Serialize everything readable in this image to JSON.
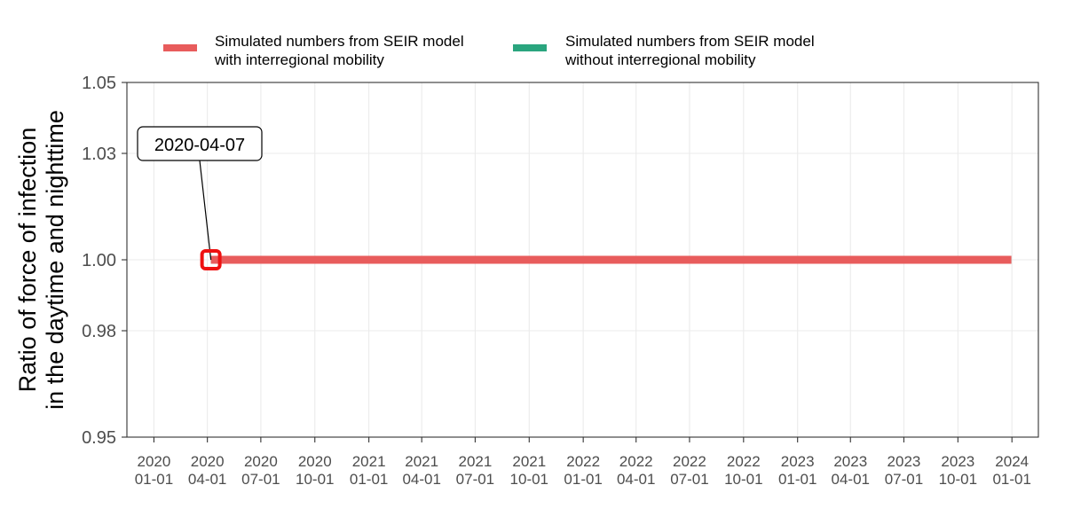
{
  "chart_data": {
    "type": "line",
    "title": "",
    "xlabel": "",
    "ylabel_lines": [
      "Ratio of force of infection",
      "in the daytime and nighttime"
    ],
    "x_tick_dates": [
      "2020-01-01",
      "2020-04-01",
      "2020-07-01",
      "2020-10-01",
      "2021-01-01",
      "2021-04-01",
      "2021-07-01",
      "2021-10-01",
      "2022-01-01",
      "2022-04-01",
      "2022-07-01",
      "2022-10-01",
      "2023-01-01",
      "2023-04-01",
      "2023-07-01",
      "2023-10-01",
      "2024-01-01"
    ],
    "x_tick_labels": [
      [
        "2020",
        "01-01"
      ],
      [
        "2020",
        "04-01"
      ],
      [
        "2020",
        "07-01"
      ],
      [
        "2020",
        "10-01"
      ],
      [
        "2021",
        "01-01"
      ],
      [
        "2021",
        "04-01"
      ],
      [
        "2021",
        "07-01"
      ],
      [
        "2021",
        "10-01"
      ],
      [
        "2022",
        "01-01"
      ],
      [
        "2022",
        "04-01"
      ],
      [
        "2022",
        "07-01"
      ],
      [
        "2022",
        "10-01"
      ],
      [
        "2023",
        "01-01"
      ],
      [
        "2023",
        "04-01"
      ],
      [
        "2023",
        "07-01"
      ],
      [
        "2023",
        "10-01"
      ],
      [
        "2024",
        "01-01"
      ]
    ],
    "y_ticks": [
      0.95,
      0.98,
      1.0,
      1.03,
      1.05
    ],
    "y_tick_labels": [
      "0.95",
      "0.98",
      "1.00",
      "1.03",
      "1.05"
    ],
    "ylim": [
      0.95,
      1.05
    ],
    "xlim": [
      "2019-11-16",
      "2024-02-15"
    ],
    "grid": true,
    "legend_position": "top",
    "series": [
      {
        "name": "Simulated numbers from SEIR model\nwith interregional mobility",
        "color": "#E85C5C",
        "x": [
          "2020-04-07",
          "2023-12-31"
        ],
        "y": [
          1.0,
          1.0
        ]
      },
      {
        "name": "Simulated numbers from SEIR model\nwithout interregional mobility",
        "color": "#2AA57E",
        "x": [
          "2020-04-07",
          "2023-12-31"
        ],
        "y": [
          1.0,
          1.0
        ]
      }
    ],
    "annotations": [
      {
        "label": "2020-04-07",
        "x": "2020-04-07",
        "y": 1.0,
        "marker_color": "#EE1111"
      }
    ]
  }
}
